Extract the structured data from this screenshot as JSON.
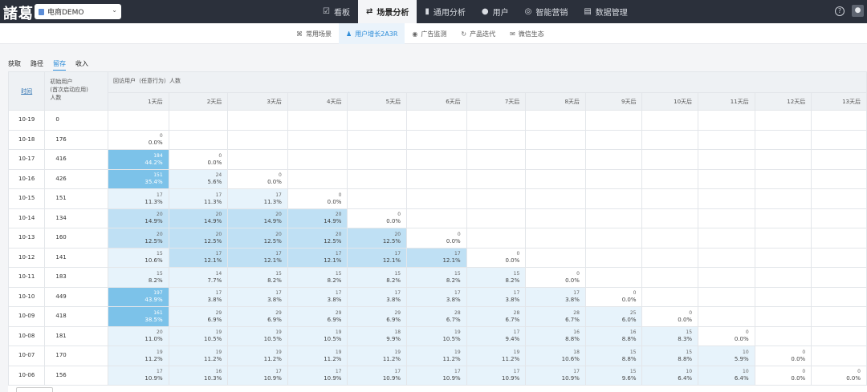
{
  "app": {
    "logo": "諸葛",
    "project": "电商DEMO"
  },
  "nav": [
    {
      "label": "看板",
      "icon": "☑",
      "active": false
    },
    {
      "label": "场景分析",
      "icon": "⇄",
      "active": true
    },
    {
      "label": "通用分析",
      "icon": "▮",
      "active": false
    },
    {
      "label": "用户",
      "icon": "●",
      "active": false
    },
    {
      "label": "智能营销",
      "icon": "◎",
      "active": false
    },
    {
      "label": "数据管理",
      "icon": "▤",
      "active": false
    }
  ],
  "subnav": [
    {
      "label": "常用场景",
      "icon": "⌘",
      "active": false
    },
    {
      "label": "用户增长2A3R",
      "icon": "♟",
      "active": true
    },
    {
      "label": "广告监测",
      "icon": "◉",
      "active": false
    },
    {
      "label": "产品迭代",
      "icon": "↻",
      "active": false
    },
    {
      "label": "微信生态",
      "icon": "✉",
      "active": false
    }
  ],
  "tabs": [
    {
      "label": "获取",
      "active": false
    },
    {
      "label": "路径",
      "active": false
    },
    {
      "label": "留存",
      "active": true
    },
    {
      "label": "收入",
      "active": false
    }
  ],
  "table": {
    "time_header": "时间",
    "initial_header": [
      "初始用户",
      "(首次启动应用)",
      "人数"
    ],
    "return_header": "回访用户（任意行为）人数",
    "day_headers": [
      "1天后",
      "2天后",
      "3天后",
      "4天后",
      "5天后",
      "6天后",
      "7天后",
      "8天后",
      "9天后",
      "10天后",
      "11天后",
      "12天后",
      "13天后"
    ],
    "rows": [
      {
        "date": "10-19",
        "initial": "0",
        "cells": []
      },
      {
        "date": "10-18",
        "initial": "176",
        "cells": [
          [
            "0",
            "0.0%"
          ]
        ]
      },
      {
        "date": "10-17",
        "initial": "416",
        "cells": [
          [
            "184",
            "44.2%"
          ],
          [
            "0",
            "0.0%"
          ]
        ]
      },
      {
        "date": "10-16",
        "initial": "426",
        "cells": [
          [
            "151",
            "35.4%"
          ],
          [
            "24",
            "5.6%"
          ],
          [
            "0",
            "0.0%"
          ]
        ]
      },
      {
        "date": "10-15",
        "initial": "151",
        "cells": [
          [
            "17",
            "11.3%"
          ],
          [
            "17",
            "11.3%"
          ],
          [
            "17",
            "11.3%"
          ],
          [
            "0",
            "0.0%"
          ]
        ]
      },
      {
        "date": "10-14",
        "initial": "134",
        "cells": [
          [
            "20",
            "14.9%"
          ],
          [
            "20",
            "14.9%"
          ],
          [
            "20",
            "14.9%"
          ],
          [
            "20",
            "14.9%"
          ],
          [
            "0",
            "0.0%"
          ]
        ]
      },
      {
        "date": "10-13",
        "initial": "160",
        "cells": [
          [
            "20",
            "12.5%"
          ],
          [
            "20",
            "12.5%"
          ],
          [
            "20",
            "12.5%"
          ],
          [
            "20",
            "12.5%"
          ],
          [
            "20",
            "12.5%"
          ],
          [
            "0",
            "0.0%"
          ]
        ]
      },
      {
        "date": "10-12",
        "initial": "141",
        "cells": [
          [
            "15",
            "10.6%"
          ],
          [
            "17",
            "12.1%"
          ],
          [
            "17",
            "12.1%"
          ],
          [
            "17",
            "12.1%"
          ],
          [
            "17",
            "12.1%"
          ],
          [
            "17",
            "12.1%"
          ],
          [
            "0",
            "0.0%"
          ]
        ]
      },
      {
        "date": "10-11",
        "initial": "183",
        "cells": [
          [
            "15",
            "8.2%"
          ],
          [
            "14",
            "7.7%"
          ],
          [
            "15",
            "8.2%"
          ],
          [
            "15",
            "8.2%"
          ],
          [
            "15",
            "8.2%"
          ],
          [
            "15",
            "8.2%"
          ],
          [
            "15",
            "8.2%"
          ],
          [
            "0",
            "0.0%"
          ]
        ]
      },
      {
        "date": "10-10",
        "initial": "449",
        "cells": [
          [
            "197",
            "43.9%"
          ],
          [
            "17",
            "3.8%"
          ],
          [
            "17",
            "3.8%"
          ],
          [
            "17",
            "3.8%"
          ],
          [
            "17",
            "3.8%"
          ],
          [
            "17",
            "3.8%"
          ],
          [
            "17",
            "3.8%"
          ],
          [
            "17",
            "3.8%"
          ],
          [
            "0",
            "0.0%"
          ]
        ]
      },
      {
        "date": "10-09",
        "initial": "418",
        "cells": [
          [
            "161",
            "38.5%"
          ],
          [
            "29",
            "6.9%"
          ],
          [
            "29",
            "6.9%"
          ],
          [
            "29",
            "6.9%"
          ],
          [
            "29",
            "6.9%"
          ],
          [
            "28",
            "6.7%"
          ],
          [
            "28",
            "6.7%"
          ],
          [
            "28",
            "6.7%"
          ],
          [
            "25",
            "6.0%"
          ],
          [
            "0",
            "0.0%"
          ]
        ]
      },
      {
        "date": "10-08",
        "initial": "181",
        "cells": [
          [
            "20",
            "11.0%"
          ],
          [
            "19",
            "10.5%"
          ],
          [
            "19",
            "10.5%"
          ],
          [
            "19",
            "10.5%"
          ],
          [
            "18",
            "9.9%"
          ],
          [
            "19",
            "10.5%"
          ],
          [
            "17",
            "9.4%"
          ],
          [
            "16",
            "8.8%"
          ],
          [
            "16",
            "8.8%"
          ],
          [
            "15",
            "8.3%"
          ],
          [
            "0",
            "0.0%"
          ]
        ]
      },
      {
        "date": "10-07",
        "initial": "170",
        "cells": [
          [
            "19",
            "11.2%"
          ],
          [
            "19",
            "11.2%"
          ],
          [
            "19",
            "11.2%"
          ],
          [
            "19",
            "11.2%"
          ],
          [
            "19",
            "11.2%"
          ],
          [
            "19",
            "11.2%"
          ],
          [
            "19",
            "11.2%"
          ],
          [
            "18",
            "10.6%"
          ],
          [
            "15",
            "8.8%"
          ],
          [
            "15",
            "8.8%"
          ],
          [
            "10",
            "5.9%"
          ],
          [
            "0",
            "0.0%"
          ]
        ]
      },
      {
        "date": "10-06",
        "initial": "156",
        "cells": [
          [
            "17",
            "10.9%"
          ],
          [
            "16",
            "10.3%"
          ],
          [
            "17",
            "10.9%"
          ],
          [
            "17",
            "10.9%"
          ],
          [
            "17",
            "10.9%"
          ],
          [
            "17",
            "10.9%"
          ],
          [
            "17",
            "10.9%"
          ],
          [
            "17",
            "10.9%"
          ],
          [
            "15",
            "9.6%"
          ],
          [
            "10",
            "6.4%"
          ],
          [
            "10",
            "6.4%"
          ],
          [
            "0",
            "0.0%"
          ],
          [
            "0",
            "0.0%"
          ]
        ]
      }
    ]
  }
}
